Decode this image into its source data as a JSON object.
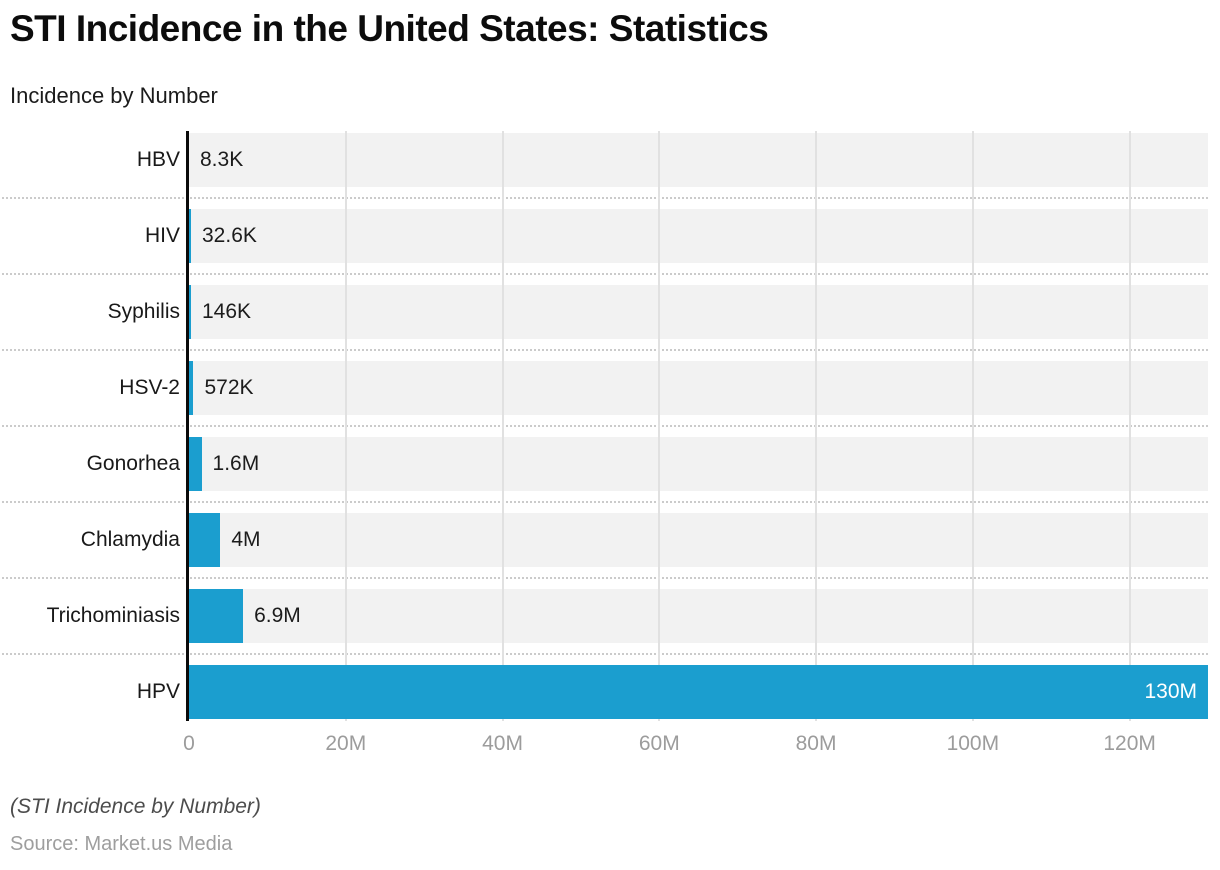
{
  "header": {
    "title": "STI Incidence in the United States: Statistics",
    "subtitle": "Incidence by Number"
  },
  "footer": {
    "caption": "(STI Incidence by Number)",
    "source": "Source: Market.us Media"
  },
  "chart_data": {
    "type": "bar",
    "orientation": "horizontal",
    "title": "STI Incidence in the United States: Statistics",
    "subtitle": "Incidence by Number",
    "categories": [
      "HBV",
      "HIV",
      "Syphilis",
      "HSV-2",
      "Gonorhea",
      "Chlamydia",
      "Trichominiasis",
      "HPV"
    ],
    "values": [
      8300,
      32600,
      146000,
      572000,
      1600000,
      4000000,
      6900000,
      130000000
    ],
    "value_labels": [
      "8.3K",
      "32.6K",
      "146K",
      "572K",
      "1.6M",
      "4M",
      "6.9M",
      "130M"
    ],
    "x_ticks": [
      "0",
      "20M",
      "40M",
      "60M",
      "80M",
      "100M",
      "120M"
    ],
    "x_tick_values": [
      0,
      20000000,
      40000000,
      60000000,
      80000000,
      100000000,
      120000000
    ],
    "xlim": [
      0,
      130000000
    ],
    "grid": true,
    "legend": false,
    "gridline_interval": 20000000,
    "colors": {
      "bar": "#1B9ECF",
      "row_band": "#F2F2F2",
      "gridline": "#E1E1E1",
      "axis_line": "#0A0A0A",
      "tick_label": "#9C9C9C",
      "category_label": "#191919",
      "value_label": "#1C1C1C",
      "value_label_inside": "#FFFFFF"
    }
  }
}
